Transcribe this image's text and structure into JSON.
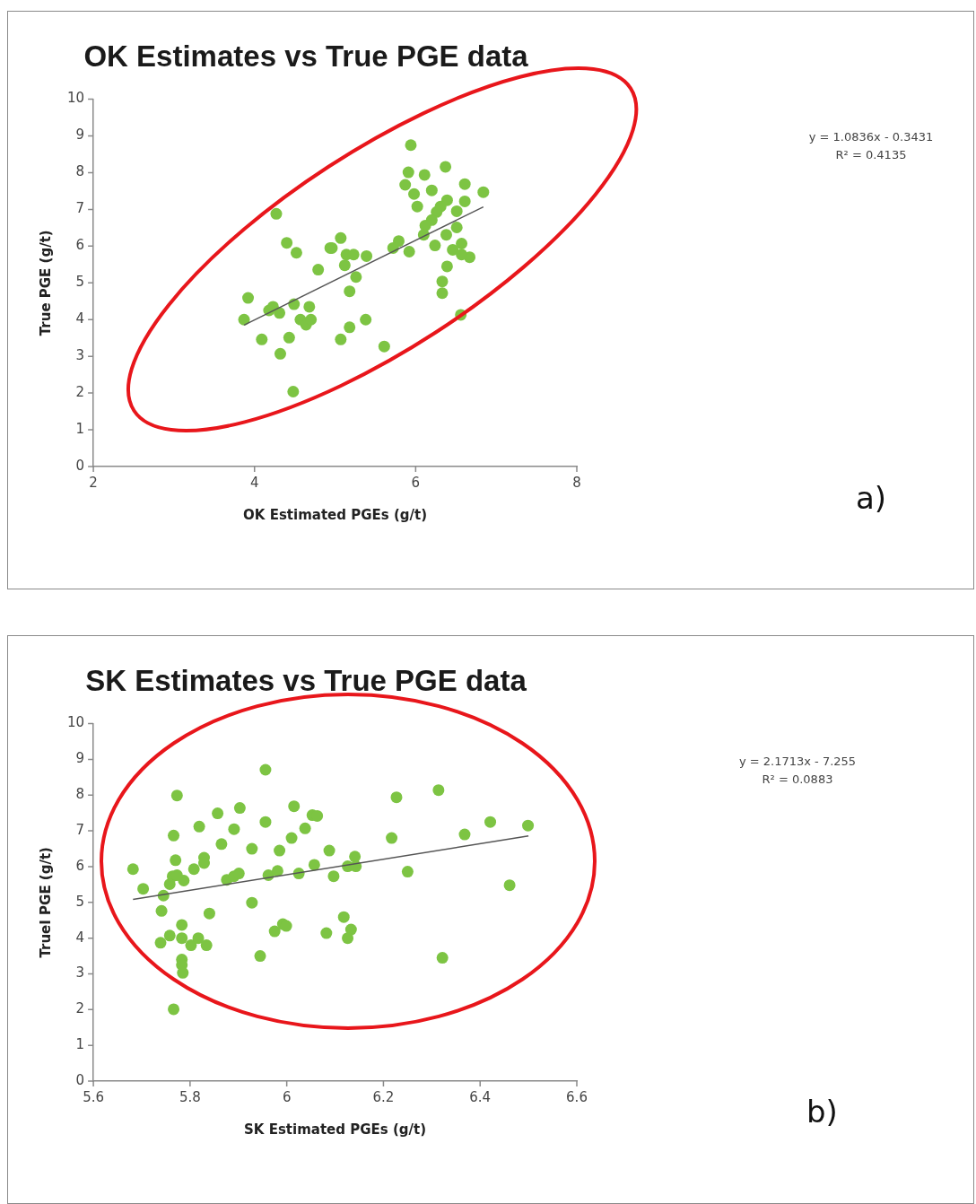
{
  "chart_data": [
    {
      "type": "scatter",
      "title": "OK Estimates vs True PGE data",
      "xlabel": "OK Estimated PGEs (g/t)",
      "ylabel": "True PGE (g/t)",
      "xlim": [
        2,
        8
      ],
      "xticks": [
        2,
        4,
        6,
        8
      ],
      "ylim": [
        0,
        10
      ],
      "yticks": [
        0,
        1,
        2,
        3,
        4,
        5,
        6,
        7,
        8,
        9,
        10
      ],
      "annotations": [
        "y = 1.0836x - 0.3431",
        "R² = 0.4135",
        "a)"
      ],
      "series": [
        {
          "marker": "circle",
          "color": "#7dc443",
          "x": [
            4.27,
            4.4,
            4.52,
            4.79,
            4.94,
            3.92,
            3.87,
            4.09,
            4.18,
            4.31,
            4.49,
            4.68,
            4.57,
            4.64,
            4.7,
            4.43,
            4.32,
            4.48,
            4.23,
            5.94,
            5.91,
            6.11,
            6.37,
            5.87,
            5.98,
            6.02,
            6.2,
            6.61,
            6.84,
            6.61,
            6.39,
            6.31,
            6.26,
            6.51,
            6.2,
            6.12,
            6.51,
            6.38,
            6.1,
            6.24,
            6.46,
            6.57,
            6.67,
            6.57,
            6.39,
            6.33,
            6.33,
            6.56,
            5.79,
            5.92,
            5.72,
            5.07,
            4.96,
            5.14,
            5.23,
            5.39,
            5.12,
            5.26,
            5.18,
            5.38,
            5.18,
            5.07,
            5.61
          ],
          "values": [
            6.88,
            6.09,
            5.82,
            5.36,
            5.95,
            4.59,
            4.0,
            3.46,
            4.25,
            4.18,
            4.42,
            4.35,
            4.0,
            3.86,
            4.0,
            3.51,
            3.07,
            2.04,
            4.35,
            8.75,
            8.01,
            7.94,
            8.16,
            7.67,
            7.42,
            7.08,
            7.52,
            7.69,
            7.47,
            7.22,
            7.25,
            7.08,
            6.93,
            6.95,
            6.71,
            6.56,
            6.51,
            6.31,
            6.31,
            6.02,
            5.9,
            6.07,
            5.7,
            5.77,
            5.45,
            5.04,
            4.72,
            4.13,
            6.14,
            5.85,
            5.95,
            6.22,
            5.95,
            5.77,
            5.77,
            5.73,
            5.48,
            5.16,
            4.77,
            4.0,
            3.79,
            3.46,
            3.27
          ]
        },
        {
          "type": "line",
          "color": "#555555",
          "x": [
            3.87,
            6.84
          ],
          "values": [
            3.85,
            7.07
          ]
        }
      ]
    },
    {
      "type": "scatter",
      "title": "SK Estimates vs True PGE data",
      "xlabel": "SK Estimated PGEs (g/t)",
      "ylabel": "TrueI PGE (g/t)",
      "xlim": [
        5.6,
        6.6
      ],
      "xticks": [
        5.6,
        5.8,
        6,
        6.2,
        6.4,
        6.6
      ],
      "ylim": [
        0,
        10
      ],
      "yticks": [
        0,
        1,
        2,
        3,
        4,
        5,
        6,
        7,
        8,
        9,
        10
      ],
      "annotations": [
        "y = 2.1713x - 7.255",
        "R² = 0.0883",
        "b)"
      ],
      "series": [
        {
          "marker": "circle",
          "color": "#7dc443",
          "x": [
            5.682,
            5.703,
            5.745,
            5.741,
            5.773,
            5.766,
            5.77,
            5.764,
            5.758,
            5.787,
            5.773,
            5.783,
            5.739,
            5.758,
            5.783,
            5.802,
            5.817,
            5.834,
            5.783,
            5.783,
            5.785,
            5.766,
            5.819,
            5.808,
            5.829,
            5.829,
            5.857,
            5.865,
            5.84,
            5.876,
            5.891,
            5.901,
            5.903,
            5.891,
            5.928,
            5.928,
            5.956,
            5.956,
            5.945,
            5.962,
            5.981,
            5.985,
            5.975,
            5.992,
            5.999,
            6.01,
            6.015,
            6.025,
            6.038,
            6.053,
            6.063,
            6.057,
            6.082,
            6.088,
            6.097,
            6.141,
            6.126,
            6.143,
            6.118,
            6.133,
            6.126,
            6.217,
            6.227,
            6.25,
            6.314,
            6.322,
            6.368,
            6.421,
            6.499,
            6.461
          ],
          "values": [
            5.93,
            5.38,
            5.19,
            4.76,
            7.99,
            6.87,
            6.18,
            5.73,
            5.51,
            5.61,
            5.76,
            4.37,
            3.87,
            4.07,
            4.0,
            3.8,
            4.0,
            3.8,
            3.4,
            3.25,
            3.03,
            2.01,
            7.12,
            5.93,
            6.25,
            6.1,
            7.49,
            6.63,
            4.69,
            5.63,
            5.73,
            5.81,
            7.64,
            7.05,
            6.5,
            4.99,
            8.71,
            7.25,
            3.5,
            5.76,
            5.88,
            6.45,
            4.19,
            4.39,
            4.34,
            6.8,
            7.69,
            5.81,
            7.07,
            7.44,
            7.42,
            6.05,
            4.14,
            6.45,
            5.73,
            6.28,
            6.01,
            6.01,
            4.59,
            4.24,
            4.0,
            6.8,
            7.94,
            5.86,
            8.14,
            3.45,
            6.9,
            7.25,
            7.15,
            5.48
          ]
        },
        {
          "type": "line",
          "color": "#555555",
          "x": [
            5.682,
            6.5
          ],
          "values": [
            5.08,
            6.86
          ]
        }
      ]
    }
  ]
}
